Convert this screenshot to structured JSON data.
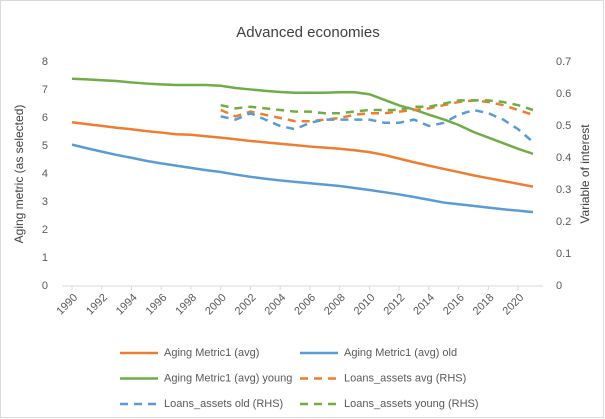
{
  "chart_data": {
    "type": "line",
    "title": "Advanced economies",
    "y_label": "Aging metric (as selected)",
    "y2_label": "Variable of interest",
    "x": [
      1990,
      1991,
      1992,
      1993,
      1994,
      1995,
      1996,
      1997,
      1998,
      1999,
      2000,
      2001,
      2002,
      2003,
      2004,
      2005,
      2006,
      2007,
      2008,
      2009,
      2010,
      2011,
      2012,
      2013,
      2014,
      2015,
      2016,
      2017,
      2018,
      2019,
      2020,
      2021
    ],
    "xlim": [
      1990,
      2021
    ],
    "xticks": [
      1990,
      1992,
      1994,
      1996,
      1998,
      2000,
      2002,
      2004,
      2006,
      2008,
      2010,
      2012,
      2014,
      2016,
      2018,
      2020
    ],
    "ylim": [
      0,
      8
    ],
    "yticks": [
      0,
      1,
      2,
      3,
      4,
      5,
      6,
      7,
      8
    ],
    "y2lim": [
      0,
      0.7
    ],
    "y2ticks": [
      0,
      0.1,
      0.2,
      0.3,
      0.4,
      0.5,
      0.6,
      0.7
    ],
    "grid": false,
    "series": [
      {
        "name": "Aging Metric1 (avg)",
        "color": "#ed7d31",
        "style": "solid",
        "values": [
          5.85,
          5.78,
          5.72,
          5.65,
          5.6,
          5.53,
          5.48,
          5.42,
          5.4,
          5.35,
          5.3,
          5.24,
          5.18,
          5.13,
          5.08,
          5.03,
          4.98,
          4.94,
          4.9,
          4.85,
          4.78,
          4.68,
          4.55,
          4.42,
          4.3,
          4.18,
          4.07,
          3.95,
          3.85,
          3.75,
          3.65,
          3.55
        ]
      },
      {
        "name": "Aging Metric1 (avg) old",
        "color": "#5b9bd5",
        "style": "solid",
        "values": [
          5.05,
          4.92,
          4.8,
          4.68,
          4.58,
          4.47,
          4.38,
          4.3,
          4.22,
          4.14,
          4.07,
          3.98,
          3.9,
          3.83,
          3.77,
          3.72,
          3.67,
          3.62,
          3.57,
          3.5,
          3.43,
          3.35,
          3.27,
          3.18,
          3.08,
          2.98,
          2.92,
          2.86,
          2.8,
          2.74,
          2.69,
          2.64
        ]
      },
      {
        "name": "Aging Metric1 (avg) young",
        "color": "#70ad47",
        "style": "solid",
        "values": [
          7.4,
          7.38,
          7.35,
          7.32,
          7.27,
          7.23,
          7.2,
          7.18,
          7.18,
          7.18,
          7.15,
          7.07,
          7.02,
          6.97,
          6.93,
          6.9,
          6.9,
          6.9,
          6.92,
          6.92,
          6.85,
          6.65,
          6.45,
          6.3,
          6.12,
          5.95,
          5.75,
          5.5,
          5.3,
          5.1,
          4.9,
          4.72
        ]
      },
      {
        "name": "Loans_assets avg (RHS)",
        "color": "#ed7d31",
        "style": "dashed",
        "axis": "y2",
        "values": [
          null,
          null,
          null,
          null,
          null,
          null,
          null,
          null,
          null,
          null,
          0.55,
          0.53,
          0.545,
          0.535,
          0.525,
          0.515,
          0.515,
          0.52,
          0.525,
          0.535,
          0.54,
          0.54,
          0.545,
          0.55,
          0.555,
          0.565,
          0.575,
          0.58,
          0.575,
          0.565,
          0.55,
          0.535
        ]
      },
      {
        "name": "Loans_assets old (RHS)",
        "color": "#5b9bd5",
        "style": "dashed",
        "axis": "y2",
        "values": [
          null,
          null,
          null,
          null,
          null,
          null,
          null,
          null,
          null,
          null,
          0.53,
          0.52,
          0.54,
          0.52,
          0.5,
          0.49,
          0.51,
          0.52,
          0.52,
          0.52,
          0.52,
          0.51,
          0.51,
          0.52,
          0.5,
          0.51,
          0.535,
          0.55,
          0.54,
          0.52,
          0.49,
          0.45
        ]
      },
      {
        "name": "Loans_assets young (RHS)",
        "color": "#70ad47",
        "style": "dashed",
        "axis": "y2",
        "values": [
          null,
          null,
          null,
          null,
          null,
          null,
          null,
          null,
          null,
          null,
          0.565,
          0.555,
          0.56,
          0.555,
          0.55,
          0.545,
          0.545,
          0.54,
          0.54,
          0.545,
          0.55,
          0.55,
          0.55,
          0.56,
          0.56,
          0.57,
          0.58,
          0.58,
          0.58,
          0.575,
          0.565,
          0.55
        ]
      }
    ]
  }
}
